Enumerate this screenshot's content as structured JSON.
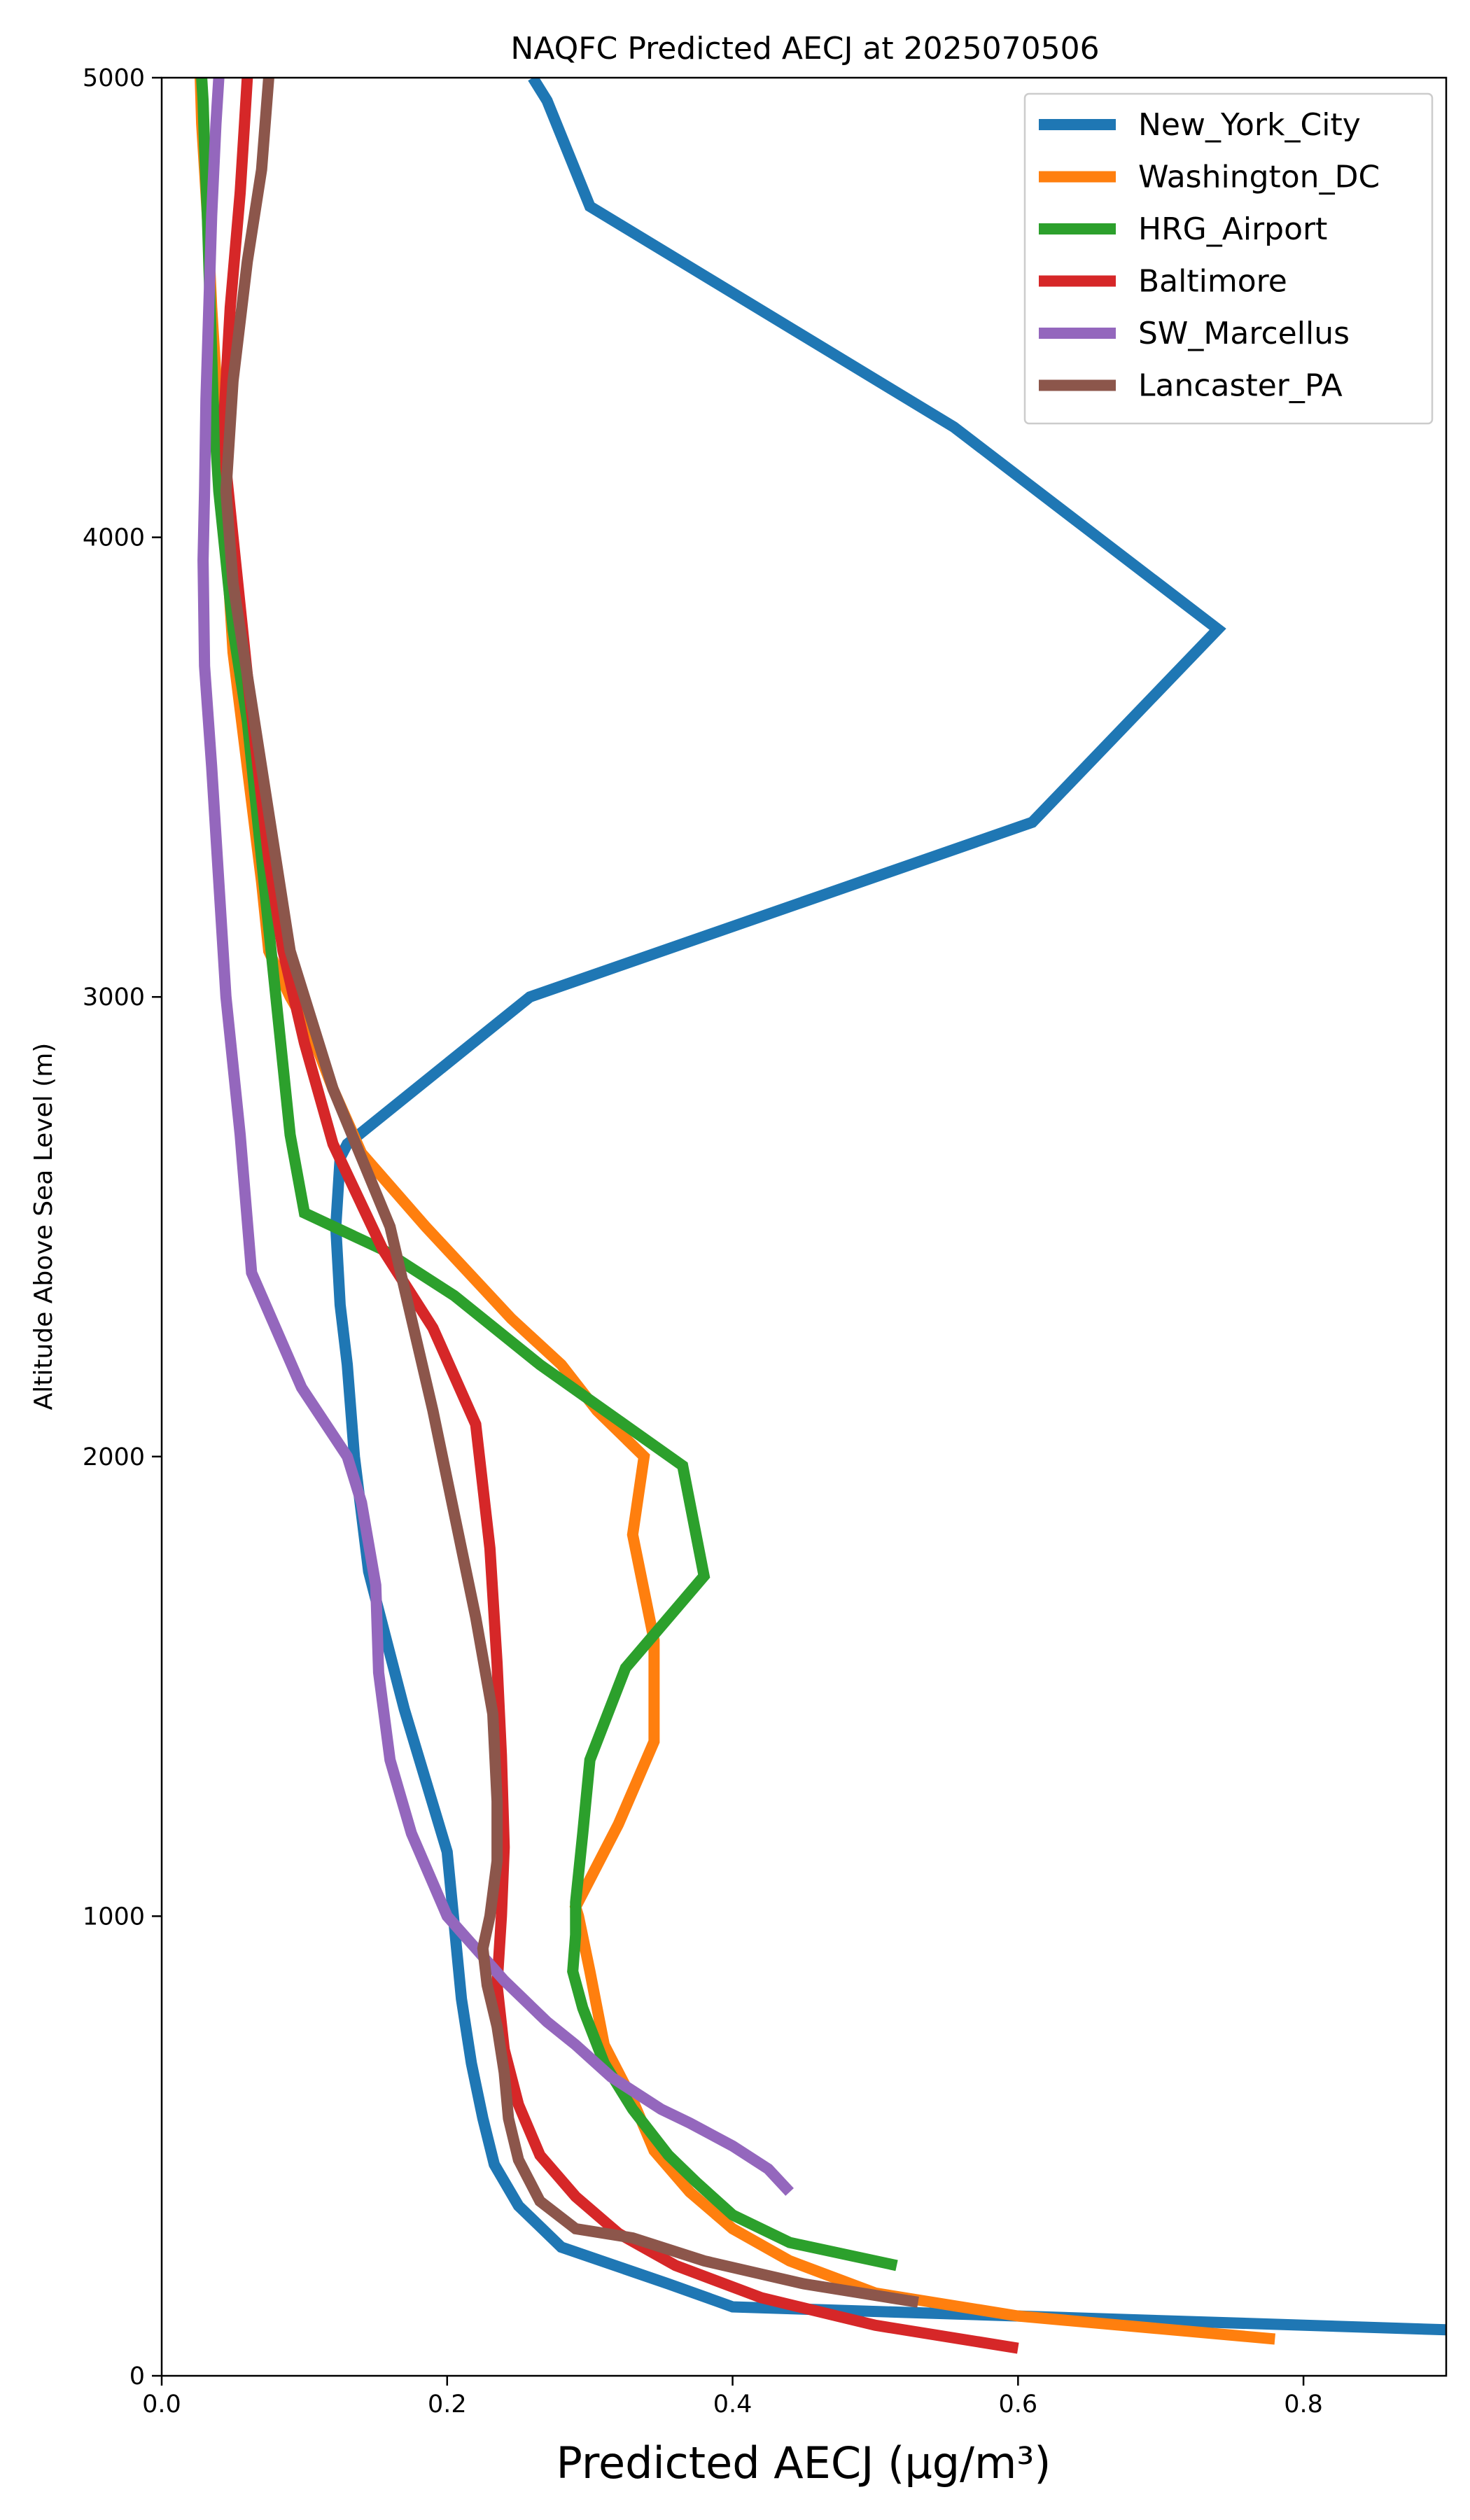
{
  "chart_data": {
    "type": "line",
    "title": "NAQFC Predicted AECJ at 2025070506",
    "xlabel": "Predicted AECJ (μg/m³)",
    "ylabel": "Altitude Above Sea Level (m)",
    "xlim": [
      0.0,
      0.9
    ],
    "ylim": [
      0,
      5000
    ],
    "xticks": [
      "0.0",
      "0.2",
      "0.4",
      "0.6",
      "0.8"
    ],
    "yticks": [
      "0",
      "1000",
      "2000",
      "3000",
      "4000",
      "5000"
    ],
    "grid": false,
    "legend_position": "top-right",
    "series": [
      {
        "name": "New_York_City",
        "color": "#1f77b4",
        "x": [
          0.9,
          0.4,
          0.355,
          0.28,
          0.25,
          0.233,
          0.225,
          0.217,
          0.21,
          0.205,
          0.2,
          0.17,
          0.145,
          0.135,
          0.13,
          0.125,
          0.122,
          0.125,
          0.13,
          0.258,
          0.61,
          0.74,
          0.555,
          0.3,
          0.27,
          0.26
        ],
        "y": [
          100,
          150,
          200,
          280,
          370,
          460,
          560,
          680,
          820,
          980,
          1140,
          1450,
          1750,
          2000,
          2200,
          2330,
          2500,
          2650,
          2680,
          3000,
          3380,
          3800,
          4240,
          4720,
          4950,
          5000
        ]
      },
      {
        "name": "Washington_DC",
        "color": "#ff7f0e",
        "x": [
          0.78,
          0.6,
          0.5,
          0.44,
          0.4,
          0.37,
          0.345,
          0.33,
          0.31,
          0.3,
          0.292,
          0.29,
          0.3,
          0.32,
          0.345,
          0.345,
          0.33,
          0.338,
          0.305,
          0.28,
          0.245,
          0.215,
          0.185,
          0.14,
          0.12,
          0.105,
          0.09,
          0.075,
          0.07,
          0.06,
          0.05,
          0.045,
          0.04,
          0.035,
          0.032,
          0.03,
          0.028,
          0.027
        ],
        "y": [
          80,
          130,
          180,
          250,
          320,
          400,
          490,
          600,
          720,
          880,
          1000,
          1020,
          1080,
          1200,
          1380,
          1600,
          1830,
          2000,
          2100,
          2200,
          2300,
          2400,
          2500,
          2660,
          2800,
          2920,
          3000,
          3100,
          3250,
          3500,
          3750,
          4000,
          4250,
          4500,
          4700,
          4800,
          4900,
          5000
        ]
      },
      {
        "name": "HRG_Airport",
        "color": "#2ca02c",
        "x": [
          0.515,
          0.44,
          0.4,
          0.375,
          0.355,
          0.33,
          0.31,
          0.295,
          0.288,
          0.29,
          0.29,
          0.295,
          0.3,
          0.325,
          0.38,
          0.365,
          0.265,
          0.205,
          0.155,
          0.1,
          0.09,
          0.085,
          0.08,
          0.07,
          0.06,
          0.05,
          0.045,
          0.04,
          0.036,
          0.034,
          0.032,
          0.03,
          0.029,
          0.028
        ],
        "y": [
          240,
          290,
          350,
          420,
          480,
          580,
          680,
          800,
          880,
          960,
          1030,
          1180,
          1340,
          1540,
          1740,
          1980,
          2200,
          2350,
          2450,
          2530,
          2700,
          2850,
          3000,
          3300,
          3600,
          3800,
          3950,
          4100,
          4300,
          4500,
          4700,
          4850,
          4950,
          5000
        ]
      },
      {
        "name": "Baltimore",
        "color": "#d62728",
        "x": [
          0.6,
          0.5,
          0.42,
          0.36,
          0.32,
          0.29,
          0.265,
          0.25,
          0.24,
          0.235,
          0.238,
          0.24,
          0.238,
          0.235,
          0.23,
          0.22,
          0.19,
          0.155,
          0.12,
          0.1,
          0.085,
          0.075,
          0.06,
          0.05,
          0.045,
          0.044,
          0.048,
          0.055,
          0.058,
          0.06
        ],
        "y": [
          60,
          110,
          170,
          240,
          310,
          390,
          480,
          590,
          710,
          850,
          1000,
          1150,
          1350,
          1550,
          1800,
          2070,
          2280,
          2450,
          2680,
          2900,
          3100,
          3300,
          3700,
          4000,
          4150,
          4280,
          4500,
          4750,
          4900,
          5000
        ]
      },
      {
        "name": "SW_Marcellus",
        "color": "#9467bd",
        "x": [
          0.44,
          0.425,
          0.4,
          0.37,
          0.35,
          0.315,
          0.29,
          0.27,
          0.24,
          0.2,
          0.175,
          0.16,
          0.152,
          0.15,
          0.14,
          0.13,
          0.098,
          0.063,
          0.055,
          0.045,
          0.038,
          0.035,
          0.03,
          0.029,
          0.03,
          0.031,
          0.033,
          0.035,
          0.038,
          0.04
        ],
        "y": [
          400,
          450,
          500,
          550,
          580,
          650,
          720,
          770,
          860,
          1000,
          1180,
          1340,
          1530,
          1720,
          1900,
          2000,
          2150,
          2400,
          2700,
          3000,
          3350,
          3500,
          3720,
          3950,
          4100,
          4300,
          4500,
          4700,
          4900,
          5000
        ]
      },
      {
        "name": "Lancaster_PA",
        "color": "#8c564b",
        "x": [
          0.53,
          0.45,
          0.38,
          0.33,
          0.29,
          0.265,
          0.25,
          0.243,
          0.24,
          0.235,
          0.228,
          0.225,
          0.23,
          0.235,
          0.235,
          0.232,
          0.22,
          0.21,
          0.2,
          0.19,
          0.175,
          0.16,
          0.14,
          0.12,
          0.105,
          0.09,
          0.08,
          0.07,
          0.06,
          0.05,
          0.045,
          0.05,
          0.06,
          0.07,
          0.075
        ],
        "y": [
          160,
          200,
          250,
          300,
          320,
          380,
          470,
          560,
          660,
          760,
          850,
          930,
          1000,
          1120,
          1250,
          1440,
          1650,
          1800,
          1950,
          2100,
          2300,
          2500,
          2650,
          2800,
          2950,
          3100,
          3300,
          3500,
          3700,
          3900,
          4100,
          4340,
          4600,
          4800,
          5000
        ]
      }
    ]
  }
}
